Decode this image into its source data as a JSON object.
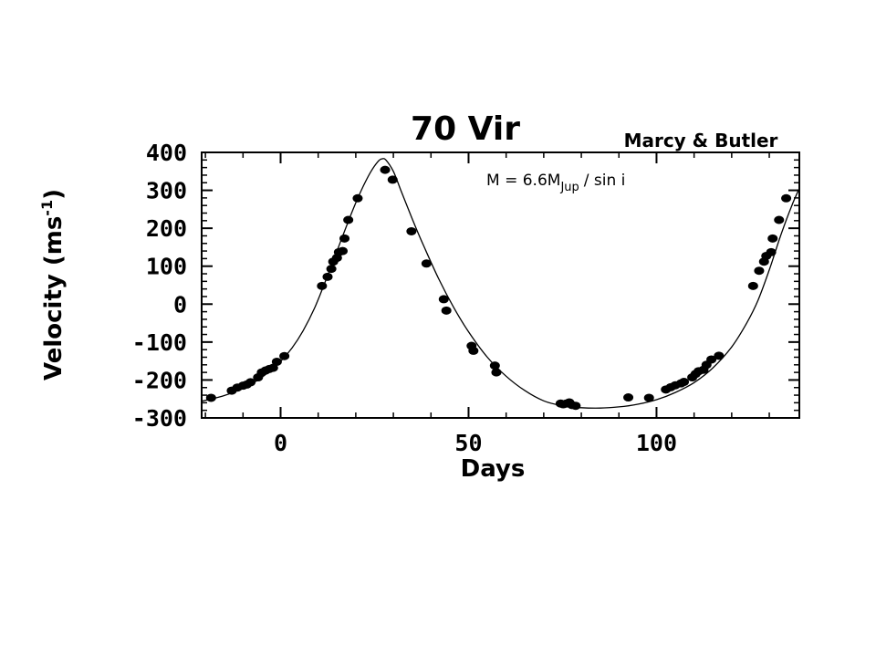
{
  "chart_data": {
    "type": "scatter",
    "title": "70 Vir",
    "subtitle": "Marcy & Butler",
    "annotation": {
      "lead": "M = 6.6M",
      "sub": "Jup",
      "tail": "/ sin i"
    },
    "xlabel": "Days",
    "ylabel": "Velocity (ms",
    "ylabel_sup": "-1",
    "xlim": [
      -21,
      138
    ],
    "ylim": [
      -300,
      400
    ],
    "xticks": [
      0,
      50,
      100
    ],
    "yticks": [
      400,
      300,
      200,
      100,
      0,
      -100,
      -200,
      -300
    ],
    "series": [
      {
        "kind": "observations",
        "points": [
          [
            -18.5,
            -247
          ],
          [
            -13,
            -228
          ],
          [
            -11.5,
            -220
          ],
          [
            -10,
            -215
          ],
          [
            -9,
            -212
          ],
          [
            -8,
            -206
          ],
          [
            -6,
            -193
          ],
          [
            -5,
            -180
          ],
          [
            -4,
            -175
          ],
          [
            -3,
            -171
          ],
          [
            -2,
            -168
          ],
          [
            -1,
            -152
          ],
          [
            1,
            -137
          ],
          [
            11,
            48
          ],
          [
            12.5,
            72
          ],
          [
            13.5,
            93
          ],
          [
            14,
            112
          ],
          [
            15,
            122
          ],
          [
            15.5,
            137
          ],
          [
            16.5,
            140
          ],
          [
            17,
            173
          ],
          [
            18,
            222
          ],
          [
            20.5,
            279
          ],
          [
            27.8,
            354
          ],
          [
            29.8,
            328
          ],
          [
            34.8,
            192
          ],
          [
            38.8,
            107
          ],
          [
            43.4,
            13
          ],
          [
            44.1,
            -17
          ],
          [
            50.8,
            -110
          ],
          [
            51.3,
            -123
          ],
          [
            57,
            -162
          ],
          [
            57.4,
            -180
          ],
          [
            74.5,
            -262
          ],
          [
            75.2,
            -264
          ],
          [
            76,
            -262
          ],
          [
            76.8,
            -259
          ],
          [
            77.5,
            -266
          ],
          [
            78.5,
            -268
          ],
          [
            92.5,
            -246
          ],
          [
            98,
            -247
          ],
          [
            102.5,
            -225
          ],
          [
            103.8,
            -219
          ],
          [
            105,
            -214
          ],
          [
            106.5,
            -209
          ],
          [
            107.3,
            -205
          ],
          [
            109.5,
            -193
          ],
          [
            110.4,
            -184
          ],
          [
            111.2,
            -177
          ],
          [
            112.5,
            -173
          ],
          [
            113.3,
            -160
          ],
          [
            114.6,
            -146
          ],
          [
            116.6,
            -136
          ],
          [
            125.7,
            48
          ],
          [
            127.3,
            88
          ],
          [
            128.6,
            112
          ],
          [
            129.2,
            127
          ],
          [
            130.5,
            137
          ],
          [
            130.9,
            173
          ],
          [
            132.6,
            222
          ],
          [
            134.5,
            279
          ]
        ]
      },
      {
        "kind": "fit",
        "points": [
          [
            -21,
            -256
          ],
          [
            -18,
            -249
          ],
          [
            -15,
            -241
          ],
          [
            -12,
            -230
          ],
          [
            -9,
            -217
          ],
          [
            -6,
            -200
          ],
          [
            -3,
            -178
          ],
          [
            0,
            -151
          ],
          [
            3,
            -116
          ],
          [
            6,
            -70
          ],
          [
            9,
            -11
          ],
          [
            12,
            62
          ],
          [
            15,
            140
          ],
          [
            18,
            218
          ],
          [
            20,
            267
          ],
          [
            22,
            311
          ],
          [
            24,
            349
          ],
          [
            26,
            377
          ],
          [
            27,
            383
          ],
          [
            28,
            380
          ],
          [
            30,
            350
          ],
          [
            32,
            300
          ],
          [
            35,
            225
          ],
          [
            38,
            155
          ],
          [
            42,
            68
          ],
          [
            46,
            -8
          ],
          [
            50,
            -73
          ],
          [
            55,
            -140
          ],
          [
            60,
            -190
          ],
          [
            65,
            -228
          ],
          [
            70,
            -255
          ],
          [
            75,
            -268
          ],
          [
            80,
            -273
          ],
          [
            85,
            -274
          ],
          [
            90,
            -271
          ],
          [
            95,
            -264
          ],
          [
            100,
            -252
          ],
          [
            105,
            -233
          ],
          [
            110,
            -207
          ],
          [
            115,
            -168
          ],
          [
            120,
            -113
          ],
          [
            124,
            -50
          ],
          [
            127,
            10
          ],
          [
            130,
            90
          ],
          [
            133,
            180
          ],
          [
            136,
            260
          ],
          [
            138,
            305
          ]
        ]
      }
    ],
    "colors": {
      "ink": "#000000",
      "background": "#ffffff"
    }
  }
}
